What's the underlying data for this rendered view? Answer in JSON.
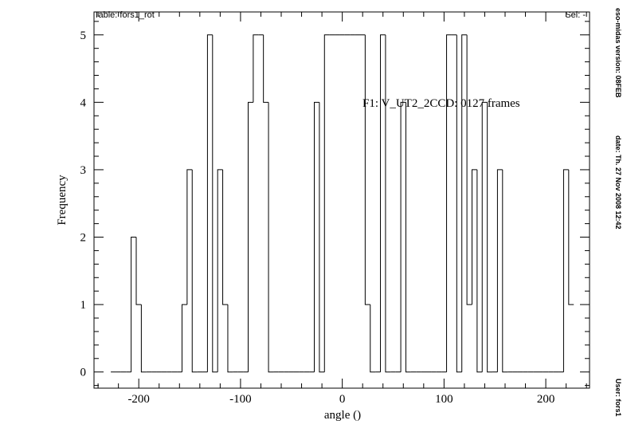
{
  "chart_data": {
    "type": "histogram",
    "header_left": "Table: fors1_rot",
    "header_right": "Sel: -",
    "annotation": "F1: V_UT2_2CCD: 0127 frames",
    "xlabel": "angle ()",
    "ylabel": "Frequency",
    "side_texts": [
      "eso-midas version: 08FEB",
      "date: Th. 27 Nov 2008 12:42",
      "User: fors1"
    ],
    "color": "#000000",
    "bins": [
      -227.5,
      -222.5,
      -217.5,
      -212.5,
      -207.5,
      -202.5,
      -197.5,
      -192.5,
      -187.5,
      -182.5,
      -177.5,
      -172.5,
      -167.5,
      -162.5,
      -157.5,
      -152.5,
      -147.5,
      -142.5,
      -137.5,
      -132.5,
      -127.5,
      -122.5,
      -117.5,
      -112.5,
      -107.5,
      -102.5,
      -97.5,
      -92.5,
      -87.5,
      -82.5,
      -77.5,
      -72.5,
      -67.5,
      -62.5,
      -57.5,
      -52.5,
      -47.5,
      -42.5,
      -37.5,
      -32.5,
      -27.5,
      -22.5,
      -17.5,
      -12.5,
      -7.5,
      -2.5,
      2.5,
      7.5,
      12.5,
      17.5,
      22.5,
      27.5,
      32.5,
      37.5,
      42.5,
      47.5,
      52.5,
      57.5,
      62.5,
      67.5,
      72.5,
      77.5,
      82.5,
      87.5,
      92.5,
      97.5,
      102.5,
      107.5,
      112.5,
      117.5,
      122.5,
      127.5,
      132.5,
      137.5,
      142.5,
      147.5,
      152.5,
      157.5,
      162.5,
      167.5,
      172.5,
      177.5,
      182.5,
      187.5,
      192.5,
      197.5,
      202.5,
      207.5,
      212.5,
      217.5,
      222.5,
      227.5
    ],
    "values": [
      0,
      0,
      0,
      0,
      2,
      1,
      0,
      0,
      0,
      0,
      0,
      0,
      0,
      0,
      1,
      3,
      0,
      0,
      0,
      5,
      0,
      3,
      1,
      0,
      0,
      0,
      0,
      4,
      5,
      5,
      4,
      0,
      0,
      0,
      0,
      0,
      0,
      0,
      0,
      0,
      4,
      0,
      5,
      5,
      5,
      5,
      5,
      5,
      5,
      5,
      1,
      0,
      0,
      5,
      0,
      0,
      0,
      4,
      0,
      0,
      0,
      0,
      0,
      0,
      0,
      0,
      5,
      5,
      0,
      5,
      1,
      3,
      0,
      4,
      0,
      0,
      3,
      0,
      0,
      0,
      0,
      0,
      0,
      0,
      0,
      0,
      0,
      0,
      0,
      3,
      1
    ],
    "xlim": [
      -244,
      243
    ],
    "ylim": [
      -0.24,
      5.34
    ],
    "xticks": [
      -200,
      -100,
      0,
      100,
      200
    ],
    "yticks": [
      0,
      1,
      2,
      3,
      4,
      5
    ],
    "xminorticks": [
      -240,
      -220,
      -180,
      -160,
      -140,
      -120,
      -80,
      -60,
      -40,
      -20,
      20,
      40,
      60,
      80,
      120,
      140,
      160,
      180,
      220,
      240
    ],
    "yminorticks": [
      -0.2,
      0.2,
      0.4,
      0.6,
      0.8,
      1.2,
      1.4,
      1.6,
      1.8,
      2.2,
      2.4,
      2.6,
      2.8,
      3.2,
      3.4,
      3.6,
      3.8,
      4.2,
      4.4,
      4.6,
      4.8,
      5.2
    ]
  }
}
